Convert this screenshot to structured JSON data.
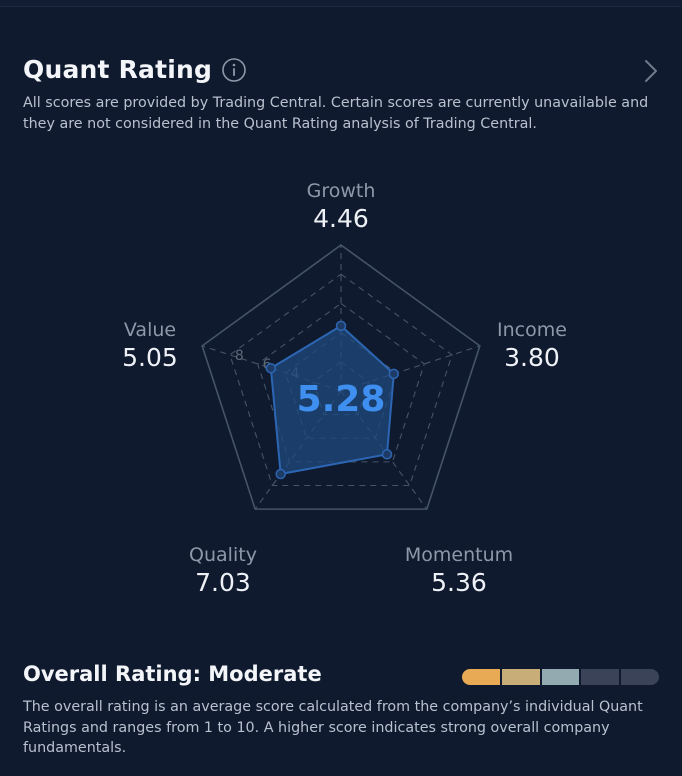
{
  "header": {
    "title": "Quant Rating",
    "subtitle": "All scores are provided by Trading Central. Certain scores are currently unavailable and they are not considered in the Quant Rating analysis of Trading Central."
  },
  "radar": {
    "scale_max": 10,
    "rings": [
      2,
      4,
      6,
      8,
      10
    ],
    "ring_labels": [
      "4",
      "6",
      "8"
    ],
    "center_score": "5.28",
    "axes": [
      {
        "name": "Growth",
        "value": "4.46",
        "score": 4.46
      },
      {
        "name": "Income",
        "value": "3.80",
        "score": 3.8
      },
      {
        "name": "Momentum",
        "value": "5.36",
        "score": 5.36
      },
      {
        "name": "Quality",
        "value": "7.03",
        "score": 7.03
      },
      {
        "name": "Value",
        "value": "5.05",
        "score": 5.05
      }
    ],
    "colors": {
      "grid": "#465468",
      "polygon_fill": "#1f4a7f",
      "polygon_stroke": "#2c66b3",
      "accent": "#3f8ff0"
    }
  },
  "overall": {
    "title": "Overall Rating: Moderate",
    "description": "The overall rating is an average score calculated from the company’s individual Quant Ratings and ranges from 1 to 10. A higher score indicates strong overall company fundamentals.",
    "level": 3,
    "segments": 5,
    "segment_colors": [
      "#e8aa55",
      "#c9ad78",
      "#93aab0",
      "#3a4357",
      "#3a4357"
    ]
  },
  "icons": {
    "info": "info-icon",
    "chevron": "chevron-right-icon"
  }
}
